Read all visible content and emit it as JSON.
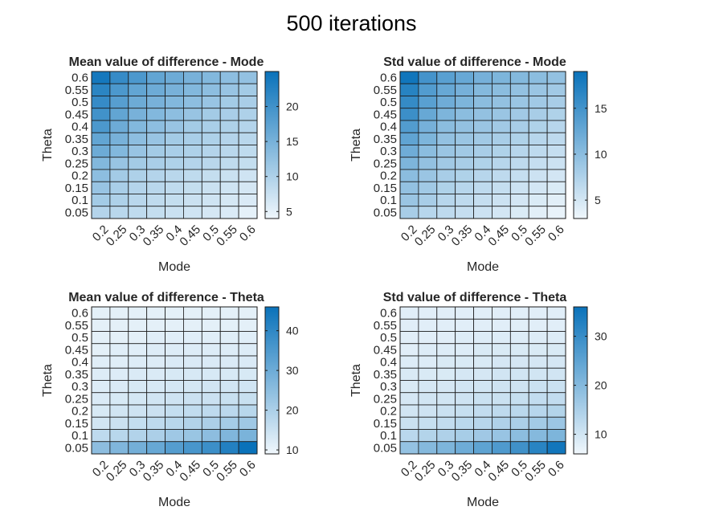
{
  "figure": {
    "title": "500 iterations"
  },
  "colors": {
    "low": "#F0F7FC",
    "high": "#0A72BA",
    "grid": "#1A1A1A",
    "text": "#262626"
  },
  "chart_data": [
    {
      "type": "heatmap",
      "title": "Mean value of difference - Mode",
      "xlabel": "Mode",
      "ylabel": "Theta",
      "x": [
        "0.2",
        "0.25",
        "0.3",
        "0.35",
        "0.4",
        "0.45",
        "0.5",
        "0.55",
        "0.6"
      ],
      "y": [
        "0.6",
        "0.55",
        "0.5",
        "0.45",
        "0.4",
        "0.35",
        "0.3",
        "0.25",
        "0.2",
        "0.15",
        "0.1",
        "0.05"
      ],
      "colorbar": {
        "range": [
          4,
          25
        ],
        "ticks": [
          5,
          10,
          15,
          20
        ]
      },
      "values": [
        [
          24,
          21,
          19,
          17,
          16,
          15,
          14,
          13,
          12.5
        ],
        [
          22,
          19,
          17,
          16,
          15,
          14,
          13,
          12,
          11
        ],
        [
          21,
          18,
          16,
          15,
          14,
          13,
          12,
          11,
          10.5
        ],
        [
          20,
          17,
          15,
          14,
          13,
          12,
          11,
          10.5,
          10
        ],
        [
          19,
          16,
          14,
          13,
          12,
          11,
          10.5,
          10,
          9.5
        ],
        [
          17,
          15,
          13,
          12,
          11,
          10.5,
          10,
          9.5,
          9
        ],
        [
          16,
          14,
          12,
          11,
          10.5,
          10,
          9.5,
          9,
          8.5
        ],
        [
          14,
          12,
          11,
          10.5,
          10,
          9.5,
          9,
          8.5,
          8
        ],
        [
          13,
          11,
          10,
          9.5,
          9,
          8.5,
          8,
          7.5,
          7
        ],
        [
          12,
          10.5,
          9.5,
          9,
          8.5,
          8,
          7.5,
          7,
          6.5
        ],
        [
          11,
          10,
          9,
          8.5,
          8,
          7.5,
          7,
          6.5,
          6
        ],
        [
          9.5,
          9,
          8.5,
          8,
          7.5,
          7,
          6.5,
          6,
          5
        ]
      ]
    },
    {
      "type": "heatmap",
      "title": "Std value of difference - Mode",
      "xlabel": "Mode",
      "ylabel": "Theta",
      "x": [
        "0.2",
        "0.25",
        "0.3",
        "0.35",
        "0.4",
        "0.45",
        "0.5",
        "0.55",
        "0.6"
      ],
      "y": [
        "0.6",
        "0.55",
        "0.5",
        "0.45",
        "0.4",
        "0.35",
        "0.3",
        "0.25",
        "0.2",
        "0.15",
        "0.1",
        "0.05"
      ],
      "colorbar": {
        "range": [
          3,
          19
        ],
        "ticks": [
          5,
          10,
          15
        ]
      },
      "values": [
        [
          18.5,
          15,
          13.5,
          12.5,
          11.5,
          11,
          10.5,
          10,
          9.5
        ],
        [
          17,
          14,
          12.5,
          11.5,
          10.5,
          10,
          9.5,
          9,
          8.5
        ],
        [
          16,
          13.5,
          12,
          11,
          10,
          9.5,
          9,
          8.5,
          8
        ],
        [
          15.5,
          12.5,
          11,
          10,
          9.5,
          9,
          8.5,
          8,
          7.5
        ],
        [
          14,
          11.5,
          10,
          9.5,
          9,
          8.5,
          8,
          7.5,
          7
        ],
        [
          13,
          11,
          9.5,
          9,
          8.5,
          8,
          7.5,
          7,
          6.5
        ],
        [
          12,
          10,
          9,
          8.5,
          8,
          7.5,
          7,
          6.5,
          6
        ],
        [
          11,
          9.5,
          8.5,
          8,
          7.5,
          7,
          6.5,
          6,
          5.5
        ],
        [
          10,
          9,
          8,
          7.5,
          7,
          6.5,
          6,
          5.5,
          5
        ],
        [
          9.5,
          8.5,
          7.5,
          7,
          6.5,
          6,
          5.5,
          5,
          4.5
        ],
        [
          9,
          8,
          7,
          6.5,
          6,
          5.5,
          5,
          4.5,
          4
        ],
        [
          8,
          7,
          6.5,
          6,
          5.5,
          5,
          4.5,
          4,
          3.5
        ]
      ]
    },
    {
      "type": "heatmap",
      "title": "Mean value of difference - Theta",
      "xlabel": "Mode",
      "ylabel": "Theta",
      "x": [
        "0.2",
        "0.25",
        "0.3",
        "0.35",
        "0.4",
        "0.45",
        "0.5",
        "0.55",
        "0.6"
      ],
      "y": [
        "0.6",
        "0.55",
        "0.5",
        "0.45",
        "0.4",
        "0.35",
        "0.3",
        "0.25",
        "0.2",
        "0.15",
        "0.1",
        "0.05"
      ],
      "colorbar": {
        "range": [
          9,
          46
        ],
        "ticks": [
          10,
          20,
          30,
          40
        ]
      },
      "values": [
        [
          11,
          11,
          11,
          11,
          11,
          11,
          11,
          11,
          11
        ],
        [
          11,
          11,
          11,
          11,
          11,
          11,
          11,
          11,
          11
        ],
        [
          11,
          11,
          11,
          11.5,
          11.5,
          11.5,
          11.5,
          11.5,
          11.5
        ],
        [
          11,
          11.5,
          11.5,
          12,
          12,
          12,
          12,
          12,
          12
        ],
        [
          11.5,
          11.5,
          12,
          12,
          12.5,
          12.5,
          12.5,
          12.5,
          12.5
        ],
        [
          12,
          12,
          12.5,
          12.5,
          13,
          13,
          13,
          13,
          13
        ],
        [
          12,
          12.5,
          13,
          13,
          13.5,
          13.5,
          14,
          14,
          14
        ],
        [
          12.5,
          13,
          13.5,
          14,
          14.5,
          15,
          15,
          15.5,
          15.5
        ],
        [
          13,
          14,
          14.5,
          15,
          16,
          16.5,
          17,
          17.5,
          18
        ],
        [
          14,
          15,
          16,
          17,
          18,
          19,
          20,
          21,
          22
        ],
        [
          17,
          18,
          19,
          20,
          22,
          23,
          25,
          27,
          28
        ],
        [
          25,
          27,
          29,
          31,
          34,
          36,
          38,
          42,
          46
        ]
      ]
    },
    {
      "type": "heatmap",
      "title": "Std value of difference - Theta",
      "xlabel": "Mode",
      "ylabel": "Theta",
      "x": [
        "0.2",
        "0.25",
        "0.3",
        "0.35",
        "0.4",
        "0.45",
        "0.5",
        "0.55",
        "0.6"
      ],
      "y": [
        "0.6",
        "0.55",
        "0.5",
        "0.45",
        "0.4",
        "0.35",
        "0.3",
        "0.25",
        "0.2",
        "0.15",
        "0.1",
        "0.05"
      ],
      "colorbar": {
        "range": [
          6,
          36
        ],
        "ticks": [
          10,
          20,
          30
        ]
      },
      "values": [
        [
          8,
          8,
          8,
          8,
          8,
          8,
          8,
          8,
          8
        ],
        [
          8,
          8,
          8,
          8,
          8,
          8,
          8,
          8,
          8
        ],
        [
          8,
          8,
          8,
          8.5,
          8.5,
          8.5,
          8.5,
          8.5,
          8.5
        ],
        [
          8,
          8.5,
          8.5,
          8.5,
          9,
          9,
          9,
          9,
          9
        ],
        [
          8.5,
          8.5,
          9,
          9,
          9,
          9.5,
          9.5,
          9.5,
          9.5
        ],
        [
          9,
          9,
          9,
          9.5,
          9.5,
          10,
          10,
          10,
          10
        ],
        [
          9,
          9.5,
          9.5,
          10,
          10,
          10.5,
          10.5,
          11,
          11
        ],
        [
          9.5,
          10,
          10,
          10.5,
          11,
          11,
          11.5,
          12,
          12
        ],
        [
          10,
          10.5,
          11,
          11.5,
          12,
          12.5,
          13,
          13.5,
          14
        ],
        [
          11,
          11.5,
          12,
          13,
          13.5,
          14.5,
          15,
          16,
          17
        ],
        [
          13,
          14,
          14.5,
          15.5,
          16.5,
          17.5,
          19,
          20,
          21
        ],
        [
          18,
          20,
          21,
          23,
          25,
          27,
          29,
          32,
          35
        ]
      ]
    }
  ]
}
